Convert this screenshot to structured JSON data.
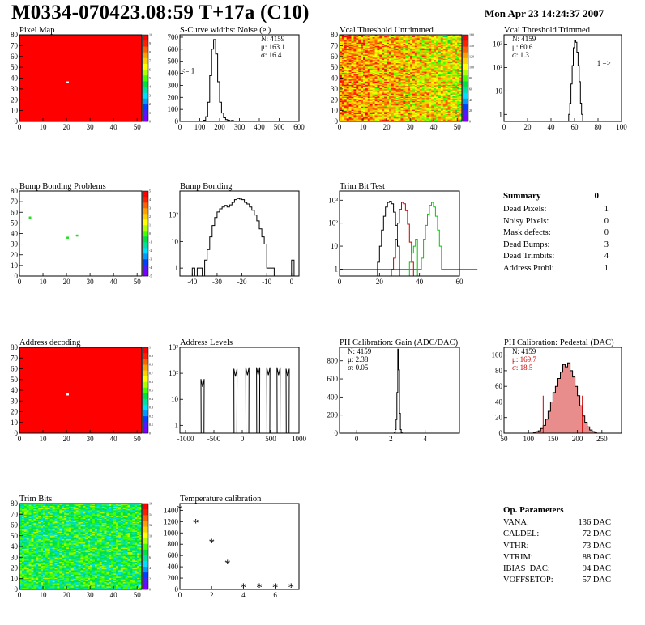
{
  "header": {
    "title": "M0334-070423.08:59 T+17a (C10)",
    "date": "Mon Apr 23 14:24:37 2007"
  },
  "colors": {
    "red": "#ff0000",
    "green": "#00cc00",
    "black": "#000000",
    "hist_red": "#cc0000",
    "palette": [
      "#7a00ff",
      "#4c1cff",
      "#0040ff",
      "#0099ff",
      "#00ddff",
      "#00e0a0",
      "#00e040",
      "#44ff00",
      "#b0ff00",
      "#ffff00",
      "#ffd000",
      "#ffa000",
      "#ff6000",
      "#ff2000",
      "#ff0000"
    ]
  },
  "summary": {
    "title": "Summary",
    "total": "0",
    "rows": [
      {
        "label": "Dead Pixels:",
        "value": "1"
      },
      {
        "label": "Noisy Pixels:",
        "value": "0"
      },
      {
        "label": "Mask defects:",
        "value": "0"
      },
      {
        "label": "Dead Bumps:",
        "value": "3"
      },
      {
        "label": "Dead Trimbits:",
        "value": "4"
      },
      {
        "label": "Address Probl:",
        "value": "1"
      }
    ]
  },
  "op_params": {
    "title": "Op. Parameters",
    "rows": [
      {
        "label": "VANA:",
        "value": "136 DAC"
      },
      {
        "label": "CALDEL:",
        "value": "72 DAC"
      },
      {
        "label": "VTHR:",
        "value": "73 DAC"
      },
      {
        "label": "VTRIM:",
        "value": "88 DAC"
      },
      {
        "label": "IBIAS_DAC:",
        "value": "94 DAC"
      },
      {
        "label": "VOFFSETOP:",
        "value": "57 DAC"
      }
    ]
  },
  "chart_data": [
    {
      "id": "pixel_map",
      "type": "heatmap",
      "title": "Pixel Map",
      "xlim": [
        0,
        52
      ],
      "ylim": [
        0,
        80
      ],
      "xticks": [
        "0",
        "10",
        "20",
        "30",
        "40",
        "50"
      ],
      "yticks": [
        "0",
        "10",
        "20",
        "30",
        "40",
        "50",
        "60",
        "70",
        "80"
      ],
      "colorbar": {
        "min": 0,
        "max": 10,
        "ticks": [
          "0",
          "1",
          "2",
          "3",
          "4",
          "5",
          "6",
          "7",
          "8",
          "9",
          "10"
        ]
      },
      "fill": "uniform",
      "fill_value": 10,
      "special_pixels": [
        {
          "x": 20,
          "y": 36,
          "value": 0
        }
      ]
    },
    {
      "id": "noise",
      "type": "line",
      "title": "S-Curve widths: Noise (e",
      "title_sup": "-",
      "title_end": ")",
      "xlim": [
        0,
        600
      ],
      "ylim": [
        0,
        720
      ],
      "log": false,
      "xticks": [
        "0",
        "100",
        "200",
        "300",
        "400",
        "500",
        "600"
      ],
      "yticks": [
        "0",
        "100",
        "200",
        "300",
        "400",
        "500",
        "600",
        "700"
      ],
      "stats": [
        "N: 4159",
        "μ: 163.1",
        "σ: 16.4"
      ],
      "annotations": [
        {
          "text": "<= 1",
          "x": 40,
          "y": 400
        }
      ],
      "series": [
        {
          "color": "#000000",
          "x": [
            100,
            110,
            120,
            130,
            140,
            150,
            160,
            170,
            180,
            190,
            200,
            210,
            220,
            230,
            240,
            250,
            260,
            270,
            280,
            290,
            300
          ],
          "values": [
            0,
            2,
            10,
            40,
            160,
            380,
            600,
            680,
            560,
            330,
            160,
            70,
            30,
            15,
            10,
            5,
            8,
            3,
            2,
            0,
            0
          ]
        }
      ]
    },
    {
      "id": "vcal_untrimmed",
      "type": "heatmap",
      "title": "Vcal Threshold Untrimmed",
      "xlim": [
        0,
        52
      ],
      "ylim": [
        0,
        80
      ],
      "xticks": [
        "0",
        "10",
        "20",
        "30",
        "40",
        "50"
      ],
      "yticks": [
        "0",
        "10",
        "20",
        "30",
        "40",
        "50",
        "60",
        "70",
        "80"
      ],
      "colorbar": {
        "min": 0,
        "max": 160,
        "ticks": [
          "0",
          "20",
          "40",
          "60",
          "80",
          "100",
          "120",
          "140",
          "160"
        ]
      },
      "fill": "noise",
      "fill_value": 115,
      "fill_spread": 35,
      "gradient": "left-high"
    },
    {
      "id": "vcal_trimmed",
      "type": "line",
      "title": "Vcal Threshold Trimmed",
      "xlim": [
        0,
        100
      ],
      "ylim": [
        0.5,
        2500
      ],
      "log": true,
      "xticks": [
        "0",
        "20",
        "40",
        "60",
        "80",
        "100"
      ],
      "yticks": [
        "1",
        "10",
        "10²",
        "10³"
      ],
      "stats": [
        "N: 4159",
        "μ: 60.6",
        "σ:  1.3"
      ],
      "annotations": [
        {
          "text": "1 =>",
          "x": 85,
          "y": 120
        }
      ],
      "series": [
        {
          "color": "#000000",
          "x": [
            54,
            55,
            56,
            57,
            58,
            59,
            60,
            61,
            62,
            63,
            64,
            65,
            66,
            67
          ],
          "values": [
            0,
            1,
            3,
            20,
            120,
            700,
            1400,
            1200,
            450,
            120,
            25,
            3,
            1,
            0
          ]
        }
      ]
    },
    {
      "id": "bump_problems",
      "type": "heatmap",
      "title": "Bump Bonding Problems",
      "xlim": [
        0,
        52
      ],
      "ylim": [
        0,
        80
      ],
      "xticks": [
        "0",
        "10",
        "20",
        "30",
        "40",
        "50"
      ],
      "yticks": [
        "0",
        "10",
        "20",
        "30",
        "40",
        "50",
        "60",
        "70",
        "80"
      ],
      "colorbar": {
        "min": -5,
        "max": 5,
        "ticks": [
          "-5",
          "-4",
          "-3",
          "-2",
          "-1",
          "0",
          "1",
          "2",
          "3",
          "4",
          "5"
        ]
      },
      "fill": "empty",
      "special_pixels": [
        {
          "x": 4,
          "y": 55,
          "value": 1
        },
        {
          "x": 20,
          "y": 36,
          "value": 1
        },
        {
          "x": 24,
          "y": 38,
          "value": 1
        }
      ]
    },
    {
      "id": "bump_bonding",
      "type": "line",
      "title": "Bump Bonding",
      "xlim": [
        -45,
        3
      ],
      "ylim": [
        0.5,
        800
      ],
      "log": true,
      "xticks": [
        "-40",
        "-30",
        "-20",
        "-10",
        "0"
      ],
      "yticks": [
        "1",
        "10",
        "10²"
      ],
      "series": [
        {
          "color": "#000000",
          "x": [
            -40,
            -39,
            -38,
            -37,
            -36,
            -35,
            -34,
            -33,
            -32,
            -31,
            -30,
            -29,
            -28,
            -27,
            -26,
            -25,
            -24,
            -23,
            -22,
            -21,
            -20,
            -19,
            -18,
            -17,
            -16,
            -15,
            -14,
            -13,
            -12,
            -11,
            -10,
            -9,
            -8,
            -7,
            -6,
            -5,
            -4,
            -3,
            -2,
            -1,
            0,
            1
          ],
          "values": [
            1,
            0,
            1,
            1,
            0,
            2,
            5,
            15,
            40,
            80,
            130,
            170,
            200,
            230,
            200,
            240,
            300,
            380,
            420,
            400,
            380,
            300,
            260,
            200,
            150,
            100,
            60,
            30,
            15,
            8,
            1,
            1,
            1,
            0,
            0,
            0,
            0,
            0,
            0,
            0,
            2,
            0
          ]
        }
      ]
    },
    {
      "id": "trim_bit_test",
      "type": "line",
      "title": "Trim Bit Test",
      "xlim": [
        0,
        60
      ],
      "ylim": [
        0.5,
        2500
      ],
      "log": true,
      "xticks": [
        "0",
        "20",
        "40",
        "60"
      ],
      "yticks": [
        "1",
        "10",
        "10²",
        "10³"
      ],
      "series": [
        {
          "color": "#00cc00",
          "x": [
            0,
            5,
            10,
            15,
            20,
            40,
            41,
            42,
            43,
            44,
            45,
            46,
            47,
            48,
            49,
            50,
            51,
            60
          ],
          "values": [
            1,
            1,
            1,
            1,
            1,
            1,
            3,
            20,
            80,
            250,
            600,
            800,
            500,
            200,
            50,
            10,
            1,
            1
          ]
        },
        {
          "color": "#000000",
          "x": [
            18,
            19,
            20,
            21,
            22,
            23,
            24,
            25,
            26,
            27,
            28,
            29,
            30
          ],
          "values": [
            0,
            2,
            10,
            50,
            200,
            500,
            800,
            900,
            700,
            300,
            80,
            10,
            0
          ]
        },
        {
          "color": "#cc0000",
          "x": [
            25,
            26,
            27,
            28,
            29,
            30,
            31,
            32,
            33,
            34,
            35,
            36,
            37
          ],
          "values": [
            0,
            1,
            3,
            20,
            100,
            400,
            800,
            700,
            350,
            90,
            15,
            2,
            0
          ]
        },
        {
          "color": "#00cc00",
          "x": [
            34,
            35,
            36,
            37,
            38,
            39
          ],
          "values": [
            0,
            2,
            5,
            10,
            20,
            0
          ]
        }
      ]
    },
    {
      "id": "address_decoding",
      "type": "heatmap",
      "title": "Address decoding",
      "xlim": [
        0,
        52
      ],
      "ylim": [
        0,
        80
      ],
      "xticks": [
        "0",
        "10",
        "20",
        "30",
        "40",
        "50"
      ],
      "yticks": [
        "0",
        "10",
        "20",
        "30",
        "40",
        "50",
        "60",
        "70",
        "80"
      ],
      "colorbar": {
        "min": 0,
        "max": 1,
        "ticks": [
          "0",
          "0.1",
          "0.2",
          "0.3",
          "0.4",
          "0.5",
          "0.6",
          "0.7",
          "0.8",
          "0.9",
          "1"
        ]
      },
      "fill": "uniform",
      "fill_value": 1,
      "special_pixels": [
        {
          "x": 20,
          "y": 36,
          "value": 0
        }
      ]
    },
    {
      "id": "address_levels",
      "type": "line",
      "title": "Address Levels",
      "xlim": [
        -1100,
        1000
      ],
      "ylim": [
        0.5,
        1000
      ],
      "log": true,
      "xticks": [
        "-1000",
        "-500",
        "0",
        "500",
        "1000"
      ],
      "yticks": [
        "1",
        "10",
        "10²",
        "10³"
      ],
      "peaks": [
        {
          "center": -700,
          "height": 60
        },
        {
          "center": -120,
          "height": 150
        },
        {
          "center": 90,
          "height": 170
        },
        {
          "center": 280,
          "height": 170
        },
        {
          "center": 460,
          "height": 170
        },
        {
          "center": 640,
          "height": 170
        },
        {
          "center": 800,
          "height": 150
        }
      ]
    },
    {
      "id": "ph_gain",
      "type": "line",
      "title": "PH Calibration: Gain (ADC/DAC)",
      "xlim": [
        -1,
        6
      ],
      "ylim": [
        0,
        950
      ],
      "log": false,
      "xticks": [
        "0",
        "2",
        "4"
      ],
      "yticks": [
        "0",
        "200",
        "400",
        "600",
        "800"
      ],
      "stats": [
        "N: 4159",
        "μ: 2.38",
        "σ: 0.05"
      ],
      "series": [
        {
          "color": "#000000",
          "x": [
            2.15,
            2.2,
            2.25,
            2.3,
            2.35,
            2.4,
            2.45,
            2.5,
            2.55,
            2.6,
            2.65
          ],
          "values": [
            0,
            5,
            40,
            150,
            450,
            930,
            700,
            220,
            40,
            5,
            0
          ]
        }
      ]
    },
    {
      "id": "ph_pedestal",
      "type": "line",
      "title": "PH Calibration: Pedestal (DAC)",
      "xlim": [
        50,
        290
      ],
      "ylim": [
        0,
        110
      ],
      "log": false,
      "xticks": [
        "50",
        "100",
        "150",
        "200",
        "250"
      ],
      "yticks": [
        "0",
        "20",
        "40",
        "60",
        "80",
        "100"
      ],
      "stats": [
        "N: 4159",
        "μ: 169.7",
        "σ: 18.5"
      ],
      "stat_colors": [
        "#000000",
        "#cc0000",
        "#cc0000"
      ],
      "cut_lines": [
        {
          "x": 130,
          "ymax": 48
        },
        {
          "x": 210,
          "ymax": 48
        }
      ],
      "series": [
        {
          "color": "#000000",
          "fill": "#cc0000",
          "x": [
            110,
            115,
            120,
            125,
            130,
            135,
            140,
            145,
            150,
            155,
            160,
            165,
            170,
            175,
            180,
            185,
            190,
            195,
            200,
            205,
            210,
            215,
            220,
            225,
            230,
            235
          ],
          "values": [
            1,
            2,
            3,
            6,
            10,
            18,
            28,
            40,
            52,
            60,
            70,
            78,
            88,
            85,
            90,
            80,
            72,
            60,
            48,
            35,
            22,
            14,
            8,
            4,
            2,
            1
          ]
        }
      ]
    },
    {
      "id": "trim_bits",
      "type": "heatmap",
      "title": "Trim Bits",
      "xlim": [
        0,
        52
      ],
      "ylim": [
        0,
        80
      ],
      "xticks": [
        "0",
        "10",
        "20",
        "30",
        "40",
        "50"
      ],
      "yticks": [
        "0",
        "10",
        "20",
        "30",
        "40",
        "50",
        "60",
        "70",
        "80"
      ],
      "colorbar": {
        "min": 0,
        "max": 16,
        "ticks": [
          "0",
          "2",
          "4",
          "6",
          "8",
          "10",
          "12",
          "14",
          "16"
        ]
      },
      "fill": "noise",
      "fill_value": 7,
      "fill_spread": 2.2,
      "gradient": "none"
    },
    {
      "id": "temperature",
      "type": "scatter",
      "title": "Temperature calibration",
      "xlim": [
        0,
        7.5
      ],
      "ylim": [
        0,
        1520
      ],
      "log": false,
      "xticks": [
        "0",
        "2",
        "4",
        "6"
      ],
      "yticks": [
        "0",
        "200",
        "400",
        "600",
        "800",
        "1000",
        "1200",
        "1400"
      ],
      "series": [
        {
          "color": "#000000",
          "x": [
            0,
            1,
            2,
            3,
            4,
            5,
            6,
            7
          ],
          "values": [
            1430,
            1180,
            830,
            460,
            40,
            40,
            40,
            40
          ]
        }
      ]
    }
  ]
}
